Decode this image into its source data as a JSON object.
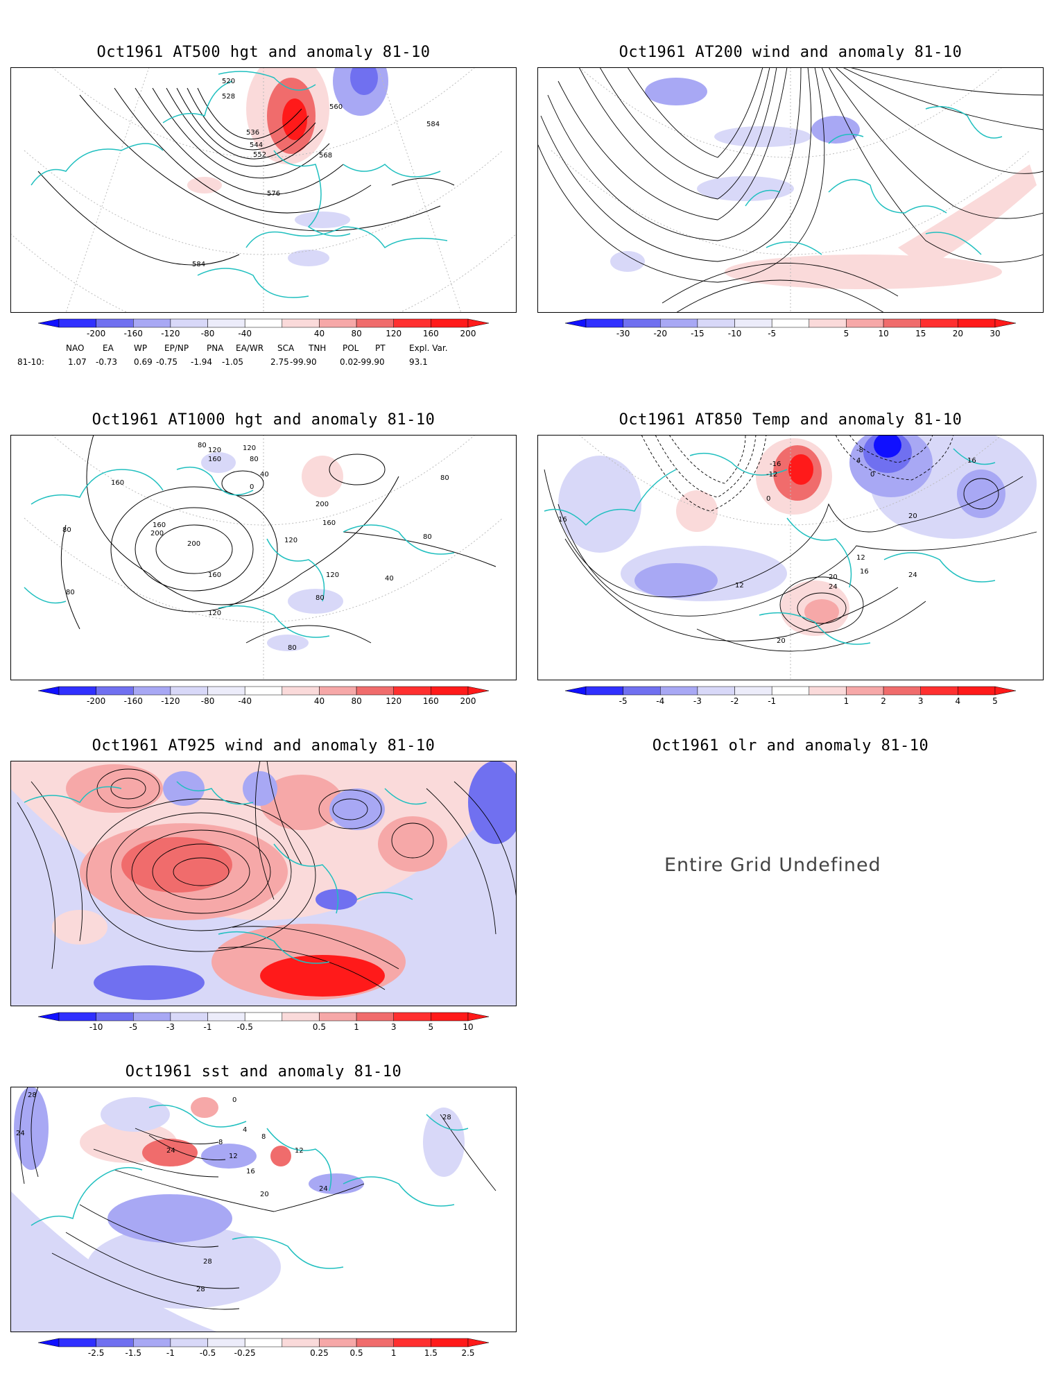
{
  "panels": [
    {
      "id": "p1",
      "title": "Oct1961 AT500 hgt and anomaly 81-10",
      "contour_labels": [
        "520",
        "528",
        "536",
        "544",
        "552",
        "560",
        "568",
        "576",
        "584",
        "584"
      ],
      "colorbar": [
        "-200",
        "-160",
        "-120",
        "-80",
        "-40",
        "40",
        "80",
        "120",
        "160",
        "200"
      ]
    },
    {
      "id": "p2",
      "title": "Oct1961 AT200 wind and anomaly 81-10",
      "colorbar": [
        "-30",
        "-20",
        "-15",
        "-10",
        "-5",
        "5",
        "10",
        "15",
        "20",
        "30"
      ]
    },
    {
      "id": "p3",
      "title": "Oct1961 AT1000 hgt and anomaly 81-10",
      "contour_labels": [
        "80",
        "120",
        "160",
        "80",
        "40",
        "0",
        "120",
        "160",
        "200",
        "200",
        "160",
        "120",
        "80",
        "80",
        "160",
        "120",
        "200",
        "40",
        "80",
        "80",
        "80",
        "80",
        "120",
        "160"
      ],
      "colorbar": [
        "-200",
        "-160",
        "-120",
        "-80",
        "-40",
        "40",
        "80",
        "120",
        "160",
        "200"
      ]
    },
    {
      "id": "p4",
      "title": "Oct1961 AT850 Temp and anomaly 81-10",
      "contour_labels": [
        "-8",
        "4",
        "-16",
        "-12",
        "0",
        "0",
        "16",
        "16",
        "20",
        "12",
        "16",
        "20",
        "24",
        "24",
        "12",
        "20"
      ],
      "colorbar": [
        "-5",
        "-4",
        "-3",
        "-2",
        "-1",
        "1",
        "2",
        "3",
        "4",
        "5"
      ]
    },
    {
      "id": "p5",
      "title": "Oct1961 AT925 wind and anomaly 81-10",
      "colorbar": [
        "-10",
        "-5",
        "-3",
        "-1",
        "-0.5",
        "0.5",
        "1",
        "3",
        "5",
        "10"
      ]
    },
    {
      "id": "p6",
      "title": "Oct1961 olr and anomaly 81-10",
      "message": "Entire Grid Undefined"
    },
    {
      "id": "p7",
      "title": "Oct1961 sst and anomaly 81-10",
      "contour_labels": [
        "28",
        "24",
        "0",
        "4",
        "8",
        "8",
        "12",
        "16",
        "20",
        "24",
        "12",
        "24",
        "28",
        "28",
        "28"
      ],
      "colorbar": [
        "-2.5",
        "-1.5",
        "-1",
        "-0.5",
        "-0.25",
        "0.25",
        "0.5",
        "1",
        "1.5",
        "2.5"
      ]
    }
  ],
  "teleconnection": {
    "headers": [
      "NAO",
      "EA",
      "WP",
      "EP/NP",
      "PNA",
      "EA/WR",
      "SCA",
      "TNH",
      "POL",
      "PT",
      "Expl. Var."
    ],
    "row_label": "81-10:",
    "values": [
      "1.07",
      "-0.73",
      "0.69",
      "-0.75",
      "-1.94",
      "-1.05",
      "2.75",
      "-99.90",
      "0.02",
      "-99.90",
      "93.1"
    ]
  },
  "colors": {
    "coast": "#1fbfbf",
    "neg3": "#1010ff",
    "neg2": "#7070f0",
    "neg1": "#a8a8f4",
    "neg0": "#d8d8f8",
    "pos0": "#fadada",
    "pos1": "#f6a8a8",
    "pos2": "#f06c6c",
    "pos3": "#ff1a1a"
  }
}
